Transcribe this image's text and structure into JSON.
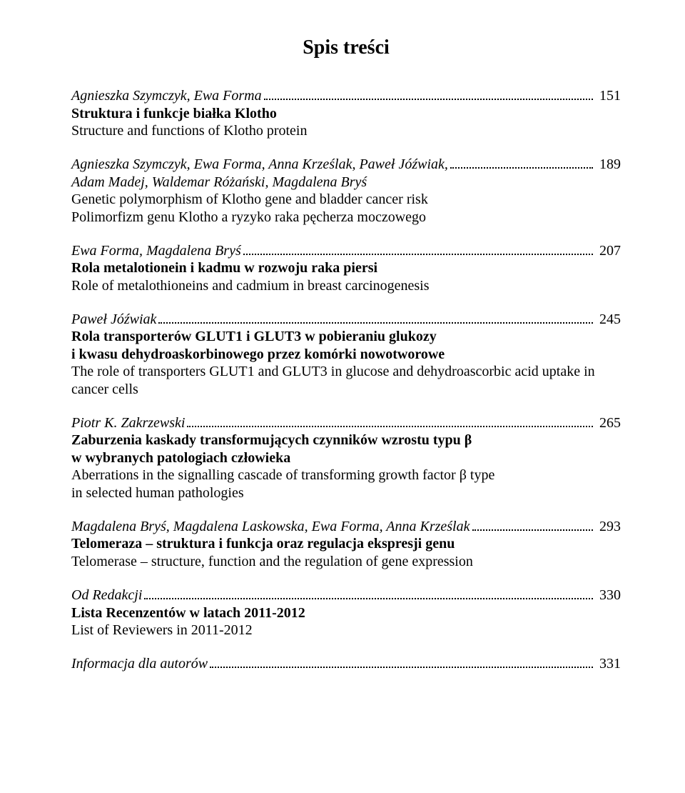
{
  "heading": "Spis treści",
  "entries": [
    {
      "authors": "Agnieszka Szymczyk, Ewa Forma",
      "page": "151",
      "titlePl": "Struktura i funkcje białka Klotho",
      "titleEn": "Structure and functions of Klotho protein"
    },
    {
      "authors": "Agnieszka Szymczyk, Ewa Forma, Anna Krześlak, Paweł Jóźwiak,\nAdam Madej, Waldemar Różański, Magdalena Bryś",
      "page": "189",
      "titlePl": "Genetic polymorphism of Klotho gene and bladder cancer risk",
      "titleEn": "Polimorfizm genu Klotho a ryzyko raka pęcherza moczowego",
      "plBold": false,
      "enItalicNone": true
    },
    {
      "authors": "Ewa Forma, Magdalena Bryś",
      "page": "207",
      "titlePl": "Rola metalotionein i kadmu w rozwoju raka piersi",
      "titleEn": "Role of metalothioneins and cadmium in breast carcinogenesis"
    },
    {
      "authors": "Paweł Jóźwiak",
      "page": "245",
      "titlePl": "Rola transporterów GLUT1 i GLUT3 w pobieraniu glukozy\ni kwasu dehydroaskorbinowego przez komórki nowotworowe",
      "titleEn": "The role of transporters GLUT1 and GLUT3 in glucose and dehydroascorbic acid uptake in cancer cells"
    },
    {
      "authors": "Piotr K. Zakrzewski",
      "page": "265",
      "titlePl": "Zaburzenia kaskady transformujących czynników wzrostu typu β\nw wybranych patologiach człowieka",
      "titleEn": "Aberrations in the signalling cascade of transforming growth factor β type\nin selected human pathologies"
    },
    {
      "authors": "Magdalena Bryś, Magdalena Laskowska, Ewa Forma, Anna Krześlak",
      "page": "293",
      "titlePl": "Telomeraza – struktura i funkcja oraz regulacja ekspresji genu",
      "titleEn": "Telomerase – structure, function and the regulation of gene expression"
    },
    {
      "authors": "Od Redakcji",
      "page": "330",
      "titlePl": "Lista Recenzentów w latach 2011-2012",
      "titleEn": "List of Reviewers in 2011-2012"
    },
    {
      "authors": "Informacja dla autorów",
      "page": "331",
      "titlePl": "",
      "titleEn": ""
    }
  ]
}
